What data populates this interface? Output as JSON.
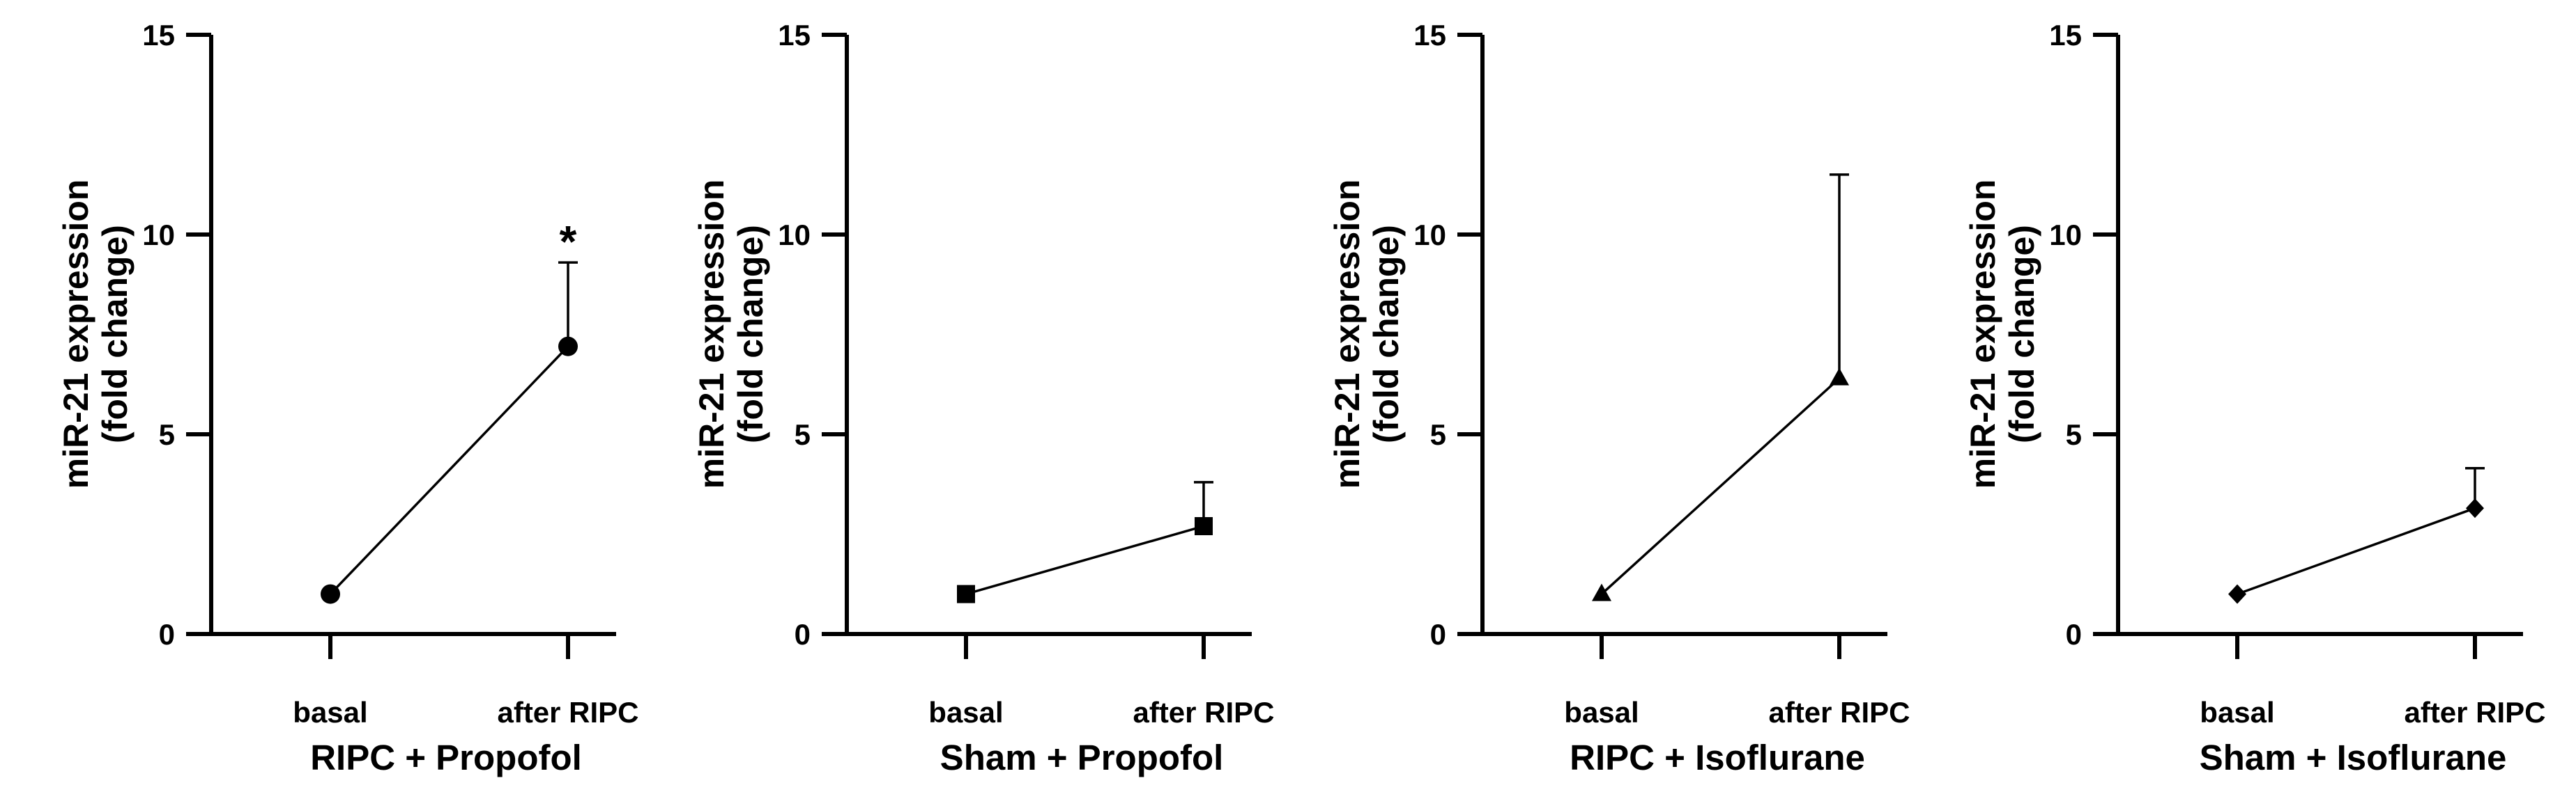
{
  "chart_data": [
    {
      "type": "line",
      "xlabel": "RIPC + Propofol",
      "ylabel": [
        "miR-21 expression",
        "(fold change)"
      ],
      "categories": [
        "basal",
        "after RIPC"
      ],
      "values": [
        1.0,
        7.2
      ],
      "errors": [
        0,
        2.1
      ],
      "marker": "circle",
      "annotation": {
        "text": "*",
        "category": "after RIPC"
      },
      "ylim": [
        0,
        15
      ],
      "yticks": [
        0,
        5,
        10,
        15
      ]
    },
    {
      "type": "line",
      "xlabel": "Sham + Propofol",
      "ylabel": [
        "miR-21 expression",
        "(fold change)"
      ],
      "categories": [
        "basal",
        "after RIPC"
      ],
      "values": [
        1.0,
        2.7
      ],
      "errors": [
        0,
        1.1
      ],
      "marker": "square",
      "ylim": [
        0,
        15
      ],
      "yticks": [
        0,
        5,
        10,
        15
      ]
    },
    {
      "type": "line",
      "xlabel": "RIPC + Isoflurane",
      "ylabel": [
        "miR-21 expression",
        "(fold change)"
      ],
      "categories": [
        "basal",
        "after RIPC"
      ],
      "values": [
        1.0,
        6.4
      ],
      "errors": [
        0,
        5.1
      ],
      "marker": "triangle",
      "ylim": [
        0,
        15
      ],
      "yticks": [
        0,
        5,
        10,
        15
      ]
    },
    {
      "type": "line",
      "xlabel": "Sham + Isoflurane",
      "ylabel": [
        "miR-21 expression",
        "(fold change)"
      ],
      "categories": [
        "basal",
        "after RIPC"
      ],
      "values": [
        1.0,
        3.15
      ],
      "errors": [
        0,
        1.0
      ],
      "marker": "diamond",
      "ylim": [
        0,
        15
      ],
      "yticks": [
        0,
        5,
        10,
        15
      ]
    }
  ]
}
